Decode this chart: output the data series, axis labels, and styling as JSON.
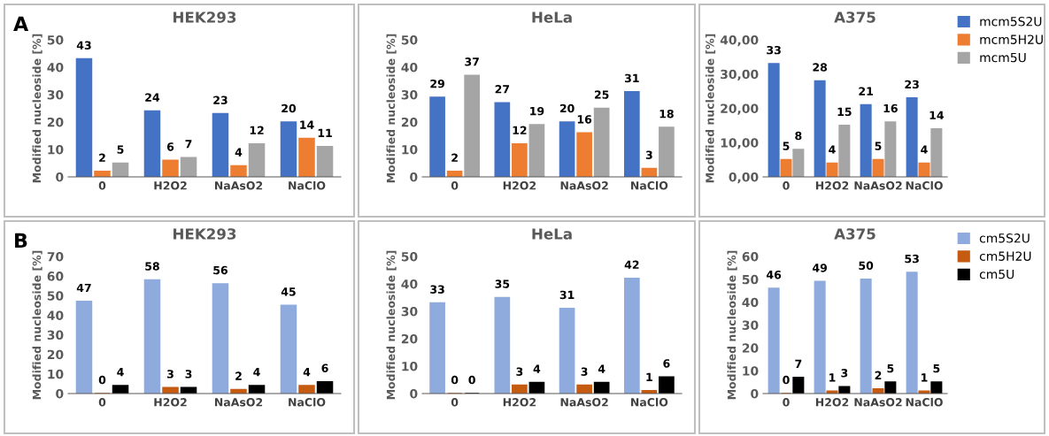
{
  "chart_data": [
    {
      "type": "bar",
      "title": "HEK293",
      "ylabel": "Modified nucleoside [%]",
      "annotations": [
        "A"
      ],
      "categories": [
        "0",
        "H2O2",
        "NaAsO2",
        "NaClO"
      ],
      "series": [
        {
          "color": "#4472c4",
          "values": [
            43,
            24,
            23,
            20
          ]
        },
        {
          "color": "#ed7d31",
          "values": [
            2,
            6,
            4,
            14
          ]
        },
        {
          "color": "#a5a5a5",
          "values": [
            5,
            7,
            12,
            11
          ]
        }
      ],
      "ylim": [
        0,
        50
      ],
      "yticks": [
        0,
        10,
        20,
        30,
        40,
        50
      ],
      "data_labels": true,
      "legend": false,
      "grid": false
    },
    {
      "type": "bar",
      "title": "HeLa",
      "ylabel": "Modified nucleoside [%]",
      "categories": [
        "0",
        "H2O2",
        "NaAsO2",
        "NaClO"
      ],
      "series": [
        {
          "color": "#4472c4",
          "values": [
            29,
            27,
            20,
            31
          ]
        },
        {
          "color": "#ed7d31",
          "values": [
            2,
            12,
            16,
            3
          ]
        },
        {
          "color": "#a5a5a5",
          "values": [
            37,
            19,
            25,
            18
          ]
        }
      ],
      "ylim": [
        0,
        50
      ],
      "yticks": [
        0,
        10,
        20,
        30,
        40,
        50
      ],
      "data_labels": true,
      "legend": false,
      "grid": false
    },
    {
      "type": "bar",
      "title": "A375",
      "ylabel": "Modified nucleoside [%]",
      "categories": [
        "0",
        "H2O2",
        "NaAsO2",
        "NaClO"
      ],
      "series": [
        {
          "name": "mcm5S2U",
          "color": "#4472c4",
          "values": [
            33,
            28,
            21,
            23
          ]
        },
        {
          "name": "mcm5H2U",
          "color": "#ed7d31",
          "values": [
            5,
            4,
            5,
            4
          ]
        },
        {
          "name": "mcm5U",
          "color": "#a5a5a5",
          "values": [
            8,
            15,
            16,
            14
          ]
        }
      ],
      "ylim": [
        0,
        40
      ],
      "yticks": [
        {
          "value": 0,
          "label": "0,00"
        },
        {
          "value": 10,
          "label": "10,00"
        },
        {
          "value": 20,
          "label": "20,00"
        },
        {
          "value": 30,
          "label": "30,00"
        },
        {
          "value": 40,
          "label": "40,00"
        }
      ],
      "data_labels": true,
      "legend": "top right",
      "grid": false
    },
    {
      "type": "bar",
      "title": "HEK293",
      "ylabel": "Modified nucleoside [%]",
      "annotations": [
        "B"
      ],
      "categories": [
        "0",
        "H2O2",
        "NaAsO2",
        "NaClO"
      ],
      "series": [
        {
          "color": "#8faadc",
          "values": [
            47,
            58,
            56,
            45
          ]
        },
        {
          "color": "#c55a11",
          "values": [
            0,
            3,
            2,
            4
          ]
        },
        {
          "color": "#000000",
          "values": [
            4,
            3,
            4,
            6
          ]
        }
      ],
      "ylim": [
        0,
        70
      ],
      "yticks": [
        0,
        10,
        20,
        30,
        40,
        50,
        60,
        70
      ],
      "data_labels": true,
      "legend": false,
      "grid": false
    },
    {
      "type": "bar",
      "title": "HeLa",
      "ylabel": "Modified nucleoside [%]",
      "categories": [
        "0",
        "H2O2",
        "NaAsO2",
        "NaClO"
      ],
      "series": [
        {
          "color": "#8faadc",
          "values": [
            33,
            35,
            31,
            42
          ]
        },
        {
          "color": "#c55a11",
          "values": [
            0,
            3,
            3,
            1
          ]
        },
        {
          "color": "#000000",
          "values": [
            0,
            4,
            4,
            6
          ]
        }
      ],
      "ylim": [
        0,
        50
      ],
      "yticks": [
        0,
        10,
        20,
        30,
        40,
        50
      ],
      "data_labels": true,
      "legend": false,
      "grid": false
    },
    {
      "type": "bar",
      "title": "A375",
      "ylabel": "Modified nucleoside [%]",
      "categories": [
        "0",
        "H2O2",
        "NaAsO2",
        "NaClO"
      ],
      "series": [
        {
          "name": "cm5S2U",
          "color": "#8faadc",
          "values": [
            46,
            49,
            50,
            53
          ]
        },
        {
          "name": "cm5H2U",
          "color": "#c55a11",
          "values": [
            0,
            1,
            2,
            1
          ]
        },
        {
          "name": "cm5U",
          "color": "#000000",
          "values": [
            7,
            3,
            5,
            5
          ]
        }
      ],
      "ylim": [
        0,
        60
      ],
      "yticks": [
        0,
        10,
        20,
        30,
        40,
        50,
        60
      ],
      "data_labels": true,
      "legend": "top right",
      "grid": false
    }
  ]
}
